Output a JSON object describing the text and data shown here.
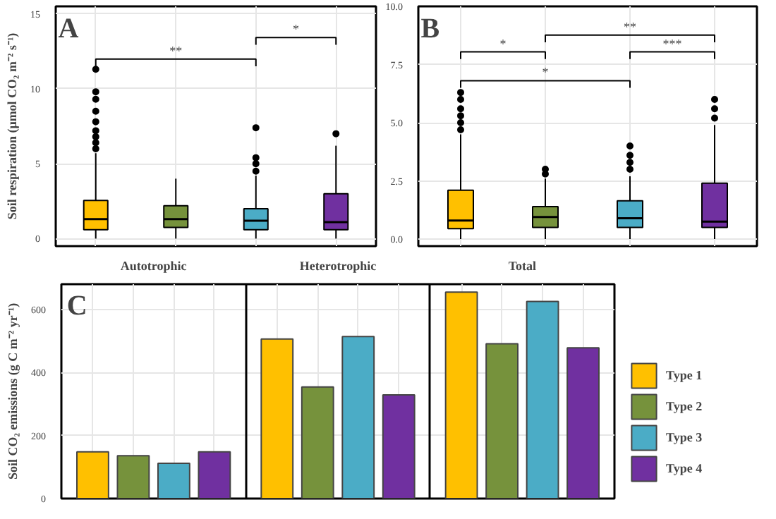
{
  "chart_data": [
    {
      "type": "box",
      "categories": [
        null,
        null,
        null,
        null
      ],
      "colors": [
        "#ffc000",
        "#76923c",
        "#4bacc6",
        "#7030a0"
      ],
      "ylabel": "Soil respiration (μmol CO₂ m⁻² s⁻¹)",
      "ylim": [
        -0.5,
        15.5
      ],
      "yticks": [
        0,
        5,
        10,
        15
      ],
      "grid": true,
      "tick_labels": "y",
      "boxes": [
        {
          "low": 0,
          "q1": 0.6,
          "median": 1.3,
          "q3": 2.55,
          "high": 5.7,
          "outliers": [
            6.0,
            6.4,
            6.8,
            7.2,
            7.8,
            8.5,
            9.3,
            9.8,
            11.3
          ]
        },
        {
          "low": 0,
          "q1": 0.75,
          "median": 1.3,
          "q3": 2.2,
          "high": 4.0
        },
        {
          "low": 0,
          "q1": 0.6,
          "median": 1.2,
          "q3": 2.0,
          "high": 4.2,
          "outliers": [
            4.5,
            5.0,
            5.4,
            7.4
          ]
        },
        {
          "low": 0,
          "q1": 0.6,
          "median": 1.1,
          "q3": 3.0,
          "high": 6.2,
          "outliers": [
            7.0
          ]
        }
      ],
      "annotations": [
        "A",
        "**",
        "*"
      ]
    },
    {
      "type": "box",
      "categories": [
        null,
        null,
        null,
        null
      ],
      "colors": [
        "#ffc000",
        "#76923c",
        "#4bacc6",
        "#7030a0"
      ],
      "ylim": [
        -0.3,
        10.0
      ],
      "yticks": [
        {
          "value": 0,
          "label": "0.0"
        },
        2.5,
        {
          "value": 5,
          "label": "5.0"
        },
        7.5,
        {
          "value": 10,
          "label": "10.0"
        }
      ],
      "grid": true,
      "tick_labels": "y",
      "boxes": [
        {
          "low": 0,
          "q1": 0.45,
          "median": 0.8,
          "q3": 2.1,
          "high": 4.5,
          "outliers": [
            4.7,
            5.0,
            5.3,
            5.6,
            6.0,
            6.3
          ]
        },
        {
          "low": 0,
          "q1": 0.5,
          "median": 0.95,
          "q3": 1.4,
          "high": 2.6,
          "outliers": [
            2.8,
            3.0
          ]
        },
        {
          "low": 0,
          "q1": 0.5,
          "median": 0.9,
          "q3": 1.65,
          "high": 2.7,
          "outliers": [
            3.0,
            3.3,
            3.6,
            4.0
          ]
        },
        {
          "low": 0,
          "q1": 0.5,
          "median": 0.75,
          "q3": 2.4,
          "high": 4.9,
          "outliers": [
            5.2,
            5.6,
            6.0
          ]
        }
      ],
      "annotations": [
        "B",
        "*",
        "**",
        "*",
        "***"
      ]
    },
    {
      "type": "bar",
      "categories": [
        "Autotrophic",
        "Heterotrophic",
        "Total"
      ],
      "ylabel": "Soil CO₂ emissions (g C m⁻² yr⁻¹)",
      "ylim": [
        0,
        680
      ],
      "yticks": [
        0,
        200,
        400,
        600
      ],
      "grid": true,
      "legend": "right",
      "annotations": [
        "C"
      ],
      "series": [
        {
          "name": "Type 1",
          "color": "#ffc000",
          "values": [
            148,
            506,
            655
          ]
        },
        {
          "name": "Type 2",
          "color": "#76923c",
          "values": [
            136,
            354,
            491
          ]
        },
        {
          "name": "Type 3",
          "color": "#4bacc6",
          "values": [
            112,
            514,
            625
          ]
        },
        {
          "name": "Type 4",
          "color": "#7030a0",
          "values": [
            148,
            329,
            478
          ]
        }
      ]
    }
  ]
}
